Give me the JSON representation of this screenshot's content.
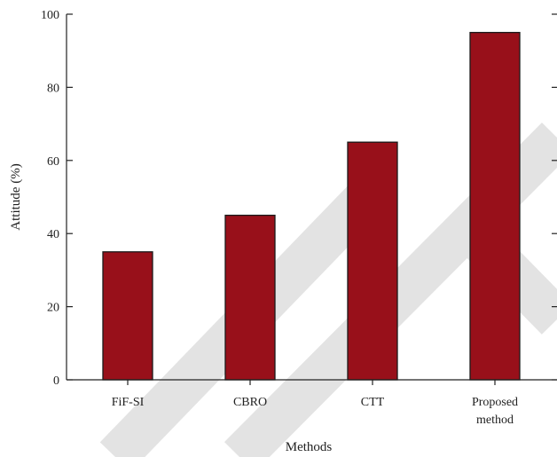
{
  "chart_data": {
    "type": "bar",
    "categories": [
      [
        "FiF-SI"
      ],
      [
        "CBRO"
      ],
      [
        "CTT"
      ],
      [
        "Proposed",
        "method"
      ]
    ],
    "values": [
      35,
      45,
      65,
      95
    ],
    "xlabel": "Methods",
    "ylabel": "Attitude (%)",
    "ylim": [
      0,
      100
    ],
    "yticks": [
      0,
      20,
      40,
      60,
      80,
      100
    ],
    "bar_color": "#98101a",
    "grid": false
  }
}
